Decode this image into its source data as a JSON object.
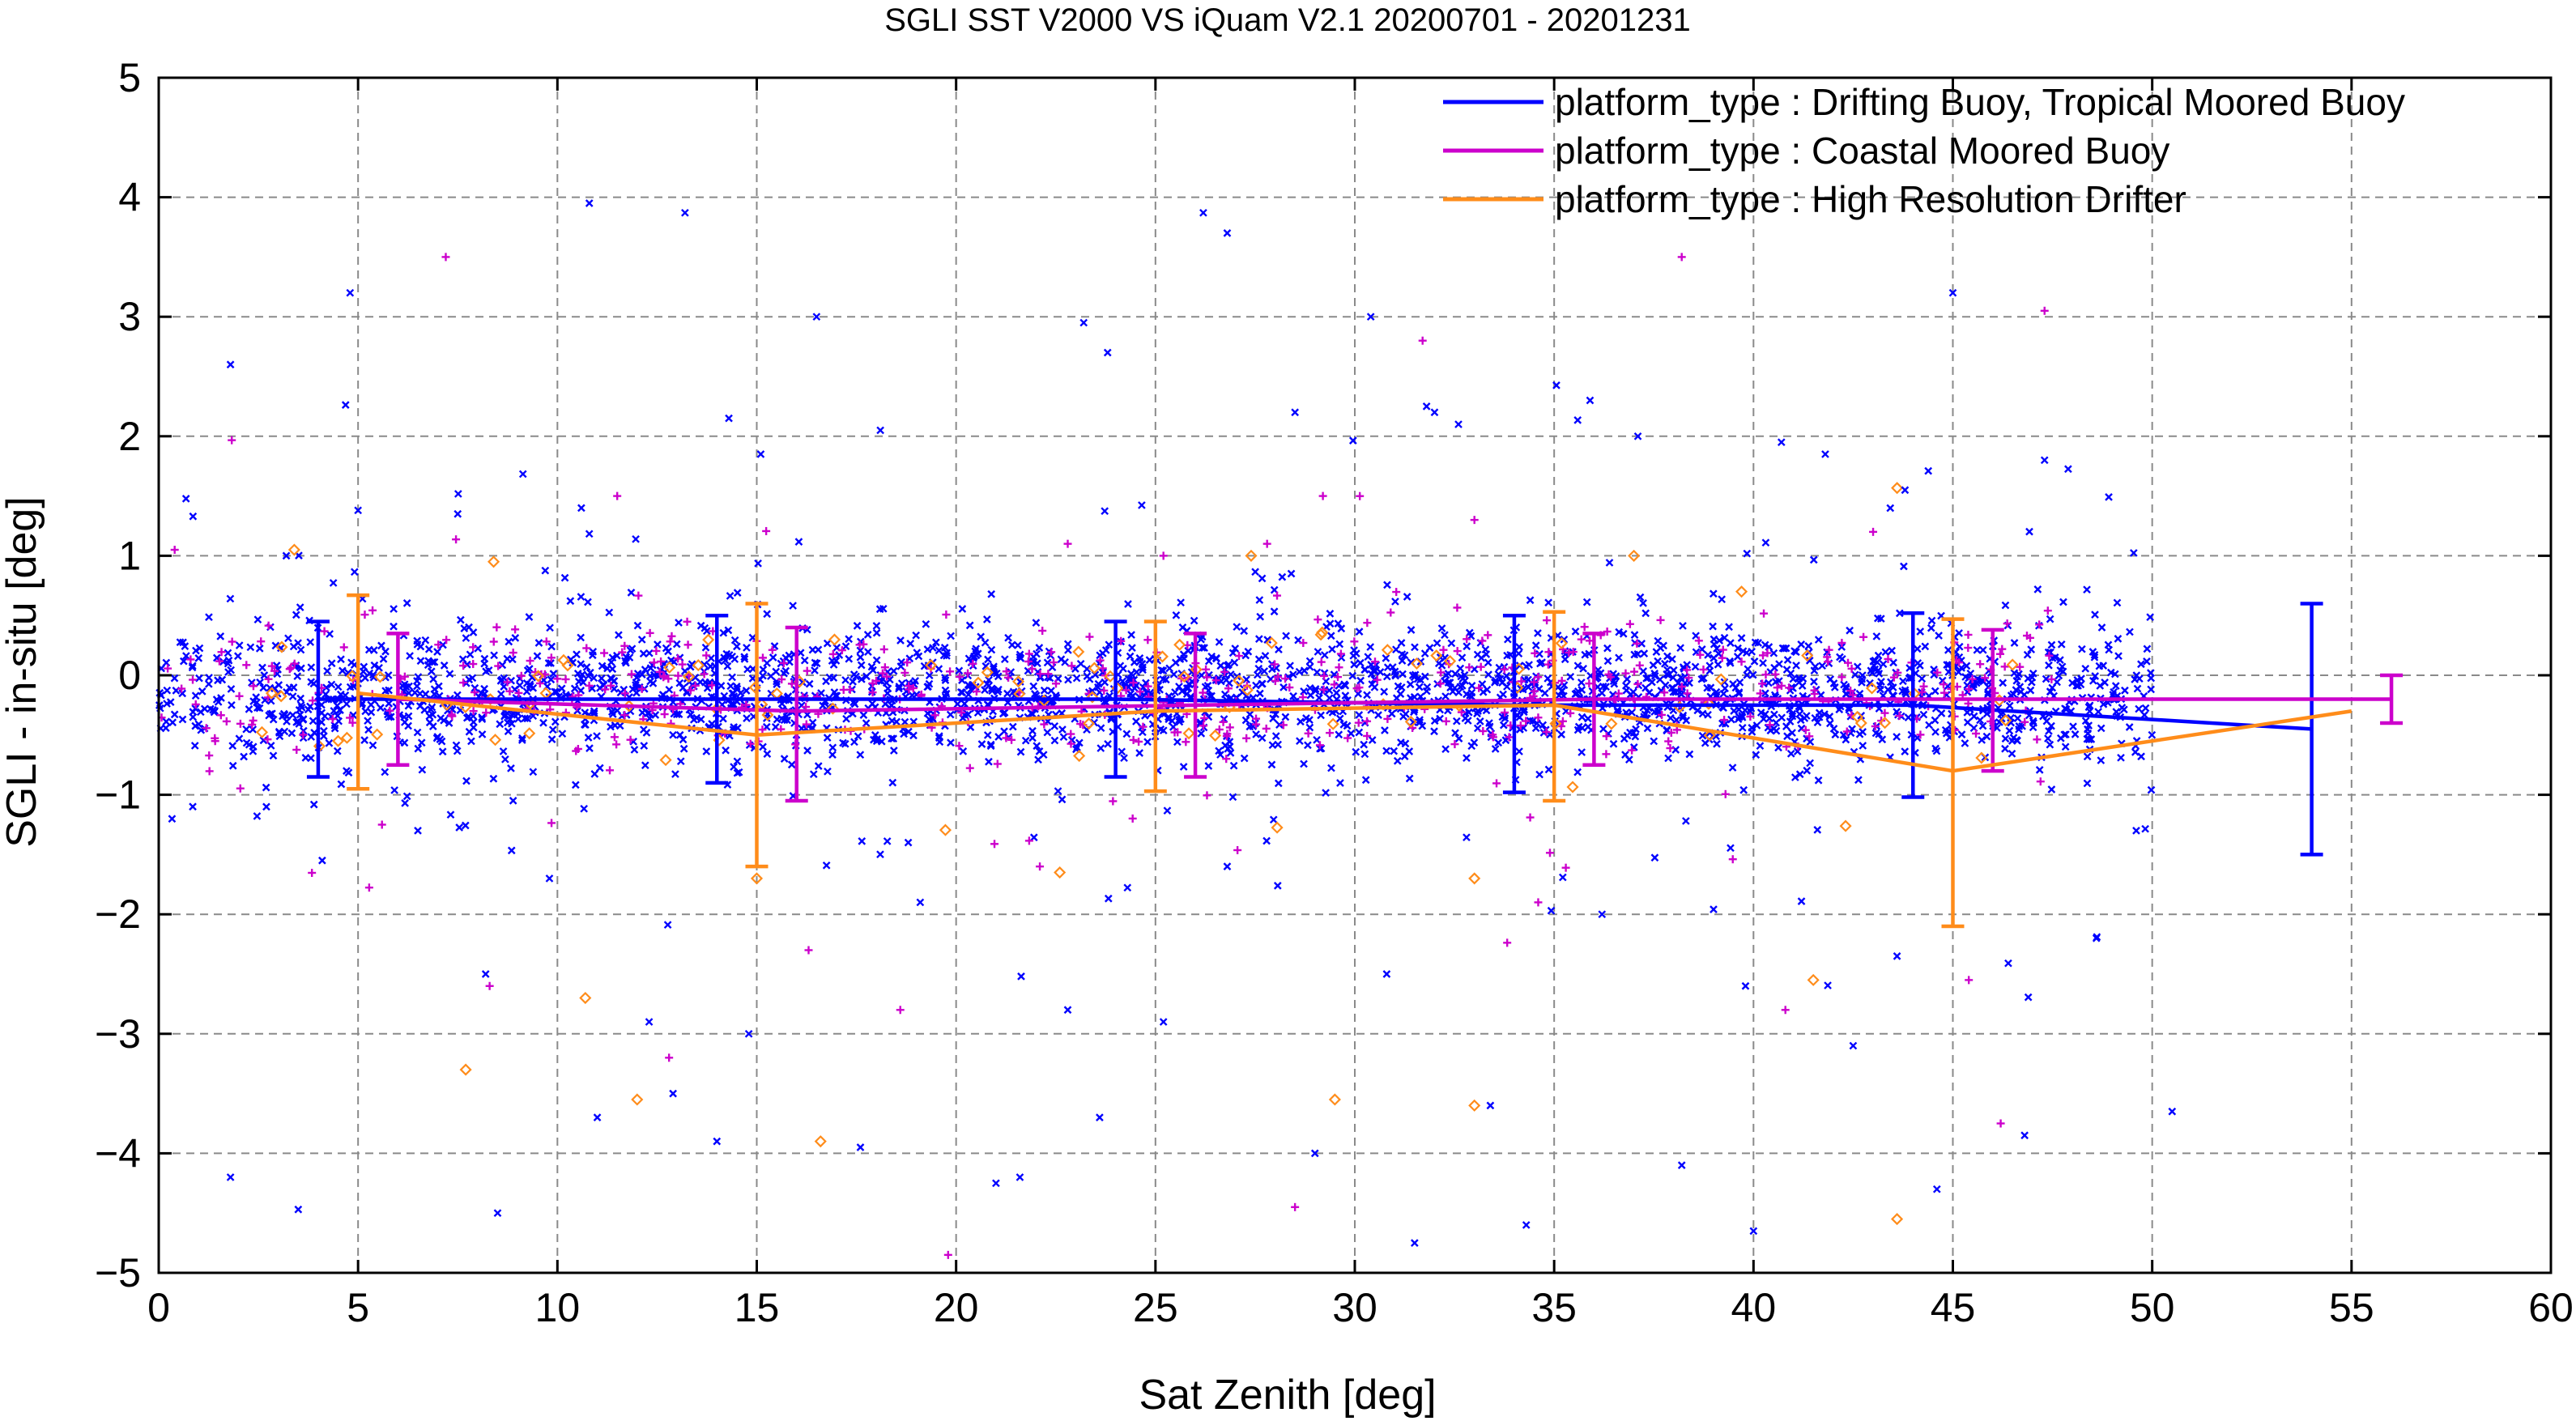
{
  "chart_data": {
    "type": "scatter",
    "title": "SGLI SST V2000 VS iQuam V2.1 20200701 - 20201231",
    "xlabel": "Sat Zenith [deg]",
    "ylabel": "SGLI - in-situ [deg]",
    "xlim": [
      0,
      60
    ],
    "ylim": [
      -5,
      5
    ],
    "xticks": [
      0,
      5,
      10,
      15,
      20,
      25,
      30,
      35,
      40,
      45,
      50,
      55,
      60
    ],
    "yticks": [
      -5,
      -4,
      -3,
      -2,
      -1,
      0,
      1,
      2,
      3,
      4,
      5
    ],
    "x_tick_labels": [
      "0",
      "5",
      "10",
      "15",
      "20",
      "25",
      "30",
      "35",
      "40",
      "45",
      "50",
      "55",
      "60"
    ],
    "y_tick_labels": [
      "−5",
      "−4",
      "−3",
      "−2",
      "−1",
      "0",
      "1",
      "2",
      "3",
      "4",
      "5"
    ],
    "grid": true,
    "legend_position": "top-right",
    "legend_labels": [
      "platform_type : Drifting Buoy, Tropical Moored Buoy",
      "platform_type : Coastal Moored Buoy",
      "platform_type : High Resolution Drifter"
    ],
    "series": [
      {
        "name": "platform_type : Drifting Buoy, Tropical Moored Buoy",
        "color": "#0000ff",
        "marker": "x",
        "mean_line": {
          "x": [
            4,
            14,
            24,
            34,
            44,
            54
          ],
          "y": [
            -0.2,
            -0.2,
            -0.2,
            -0.25,
            -0.25,
            -0.45
          ],
          "err_low": [
            -0.85,
            -0.9,
            -0.85,
            -0.98,
            -1.02,
            -1.5
          ],
          "err_high": [
            0.45,
            0.5,
            0.45,
            0.5,
            0.52,
            0.6
          ]
        },
        "scatter_samples": {
          "x": [
            1.8,
            3.2,
            4.8,
            10.8,
            13.2,
            16.5,
            23.2,
            23.8,
            26.2,
            26.8,
            28.5,
            30.4,
            31.8,
            32.0,
            32.6,
            35.9,
            37.1,
            40.7,
            41.8,
            43.8,
            45.0,
            47.3,
            5.0,
            14.3,
            15.1,
            18.1,
            10.6,
            7.5,
            1.8,
            3.5,
            8.5,
            11.0,
            14.0,
            17.6,
            21.0,
            21.6,
            23.6,
            29.0,
            31.5,
            34.3,
            38.2,
            40.0,
            44.6,
            46.8,
            50.5,
            4.1,
            6.5,
            9.8,
            12.3,
            14.8,
            19.1,
            22.8,
            26.8,
            30.8,
            36.2,
            39.8,
            42.5,
            48.6,
            2.7,
            8.2,
            12.9,
            18.8,
            25.2,
            33.4,
            43.6,
            49.6
          ],
          "y": [
            2.6,
            1.0,
            3.2,
            3.95,
            3.87,
            3.0,
            2.95,
            2.7,
            3.87,
            3.7,
            2.2,
            3.0,
            2.25,
            2.2,
            2.1,
            2.3,
            2.0,
            1.95,
            1.85,
            1.55,
            3.2,
            1.8,
            1.38,
            2.15,
            1.85,
            2.05,
            1.4,
            1.35,
            -4.2,
            -4.47,
            -4.5,
            -3.7,
            -3.9,
            -3.95,
            -4.25,
            -4.2,
            -3.7,
            -4.0,
            -4.75,
            -4.6,
            -4.1,
            -4.65,
            -4.3,
            -3.85,
            -3.65,
            -1.55,
            -1.3,
            -1.7,
            -2.9,
            -3.0,
            -1.9,
            -2.8,
            -1.6,
            -2.5,
            -2.0,
            -2.6,
            -3.1,
            -2.2,
            -1.1,
            -2.5,
            -3.5,
            -1.4,
            -2.9,
            -3.6,
            -2.35,
            -1.3
          ]
        }
      },
      {
        "name": "platform_type : Coastal Moored Buoy",
        "color": "#cc00cc",
        "marker": "+",
        "mean_line": {
          "x": [
            6,
            16,
            26,
            36,
            46,
            56
          ],
          "y": [
            -0.2,
            -0.3,
            -0.25,
            -0.2,
            -0.2,
            -0.2
          ],
          "err_low": [
            -0.75,
            -1.05,
            -0.85,
            -0.75,
            -0.8,
            -0.4
          ],
          "err_high": [
            0.35,
            0.4,
            0.35,
            0.35,
            0.38,
            0.0
          ]
        },
        "scatter_samples": {
          "x": [
            7.2,
            11.5,
            16.3,
            19.8,
            22.8,
            25.2,
            27.8,
            28.5,
            31.7,
            33.0,
            38.2,
            43.0,
            45.4,
            47.3,
            0.4,
            5.6,
            8.3,
            12.8,
            18.6,
            22.1,
            29.2,
            34.6,
            40.8,
            46.2
          ],
          "y": [
            3.5,
            1.5,
            -2.3,
            -4.85,
            1.1,
            1.0,
            1.1,
            -4.45,
            2.8,
            1.3,
            3.5,
            1.2,
            -2.55,
            3.05,
            1.05,
            -1.25,
            -2.6,
            -3.2,
            -2.8,
            -1.6,
            1.5,
            -1.9,
            -2.8,
            -3.75
          ]
        }
      },
      {
        "name": "platform_type : High Resolution Drifter",
        "color": "#ff8c1a",
        "marker": "diamond",
        "mean_line": {
          "x": [
            5,
            15,
            25,
            35,
            45,
            55
          ],
          "y": [
            -0.15,
            -0.5,
            -0.3,
            -0.25,
            -0.8,
            -0.3
          ],
          "err_low": [
            -0.95,
            -1.6,
            -0.97,
            -1.05,
            -2.1,
            -0.3
          ],
          "err_high": [
            0.67,
            0.6,
            0.45,
            0.53,
            0.47,
            -0.3
          ]
        },
        "scatter_samples": {
          "x": [
            3.4,
            7.7,
            10.7,
            12.0,
            16.6,
            29.5,
            33.0,
            41.5,
            43.6,
            8.4,
            27.4,
            37.0,
            39.7,
            22.6,
            15.0,
            33.0,
            42.7,
            4.5
          ],
          "y": [
            1.05,
            -3.3,
            -2.7,
            -3.55,
            -3.9,
            -3.55,
            -3.6,
            -2.55,
            -4.55,
            0.95,
            1.0,
            1.0,
            0.7,
            -1.65,
            -1.7,
            -1.7,
            -0.4,
            -0.55
          ]
        }
      }
    ]
  }
}
